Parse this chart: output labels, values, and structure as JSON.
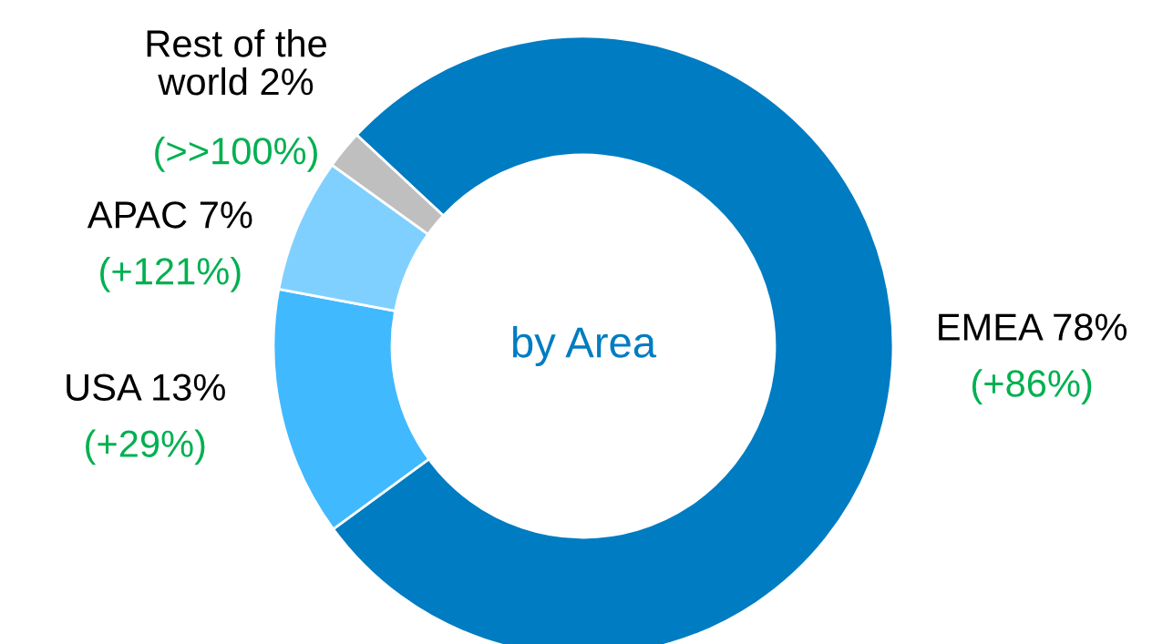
{
  "chart_data": {
    "type": "donut",
    "title": "by Area",
    "categories": [
      "EMEA",
      "USA",
      "APAC",
      "Rest of the\nworld"
    ],
    "values": [
      78,
      13,
      7,
      2
    ],
    "value_labels": [
      "78%",
      "13%",
      "7%",
      "2%"
    ],
    "colors": [
      "#007cc2",
      "#40b9ff",
      "#80d0ff",
      "#bfbfbf"
    ],
    "annotations": [
      {
        "text": "(+86%)",
        "x": "EMEA"
      },
      {
        "text": "(+29%)",
        "x": "USA"
      },
      {
        "text": "(+121%)",
        "x": "APAC"
      },
      {
        "text": "(>>100%)",
        "x": "Rest of the\nworld"
      }
    ],
    "legend": false
  }
}
